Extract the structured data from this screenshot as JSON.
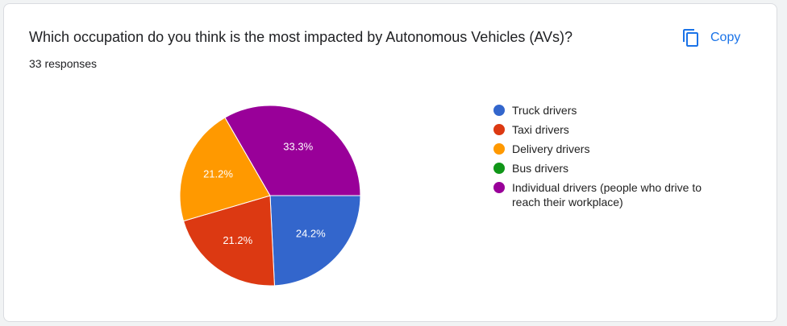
{
  "copy_button": "Copy",
  "chart_data": {
    "type": "pie",
    "title": "Which occupation do you think is the most impacted by Autonomous Vehicles (AVs)?",
    "subtitle": "33 responses",
    "categories": [
      "Truck drivers",
      "Taxi drivers",
      "Delivery drivers",
      "Bus drivers",
      "Individual drivers (people who drive to reach their workplace)"
    ],
    "values": [
      24.2,
      21.2,
      21.2,
      0,
      33.3
    ],
    "value_labels": [
      "24.2%",
      "21.2%",
      "21.2%",
      null,
      "33.3%"
    ],
    "colors": [
      "#3366cc",
      "#dc3912",
      "#ff9900",
      "#109618",
      "#990099"
    ],
    "legend": "right"
  }
}
